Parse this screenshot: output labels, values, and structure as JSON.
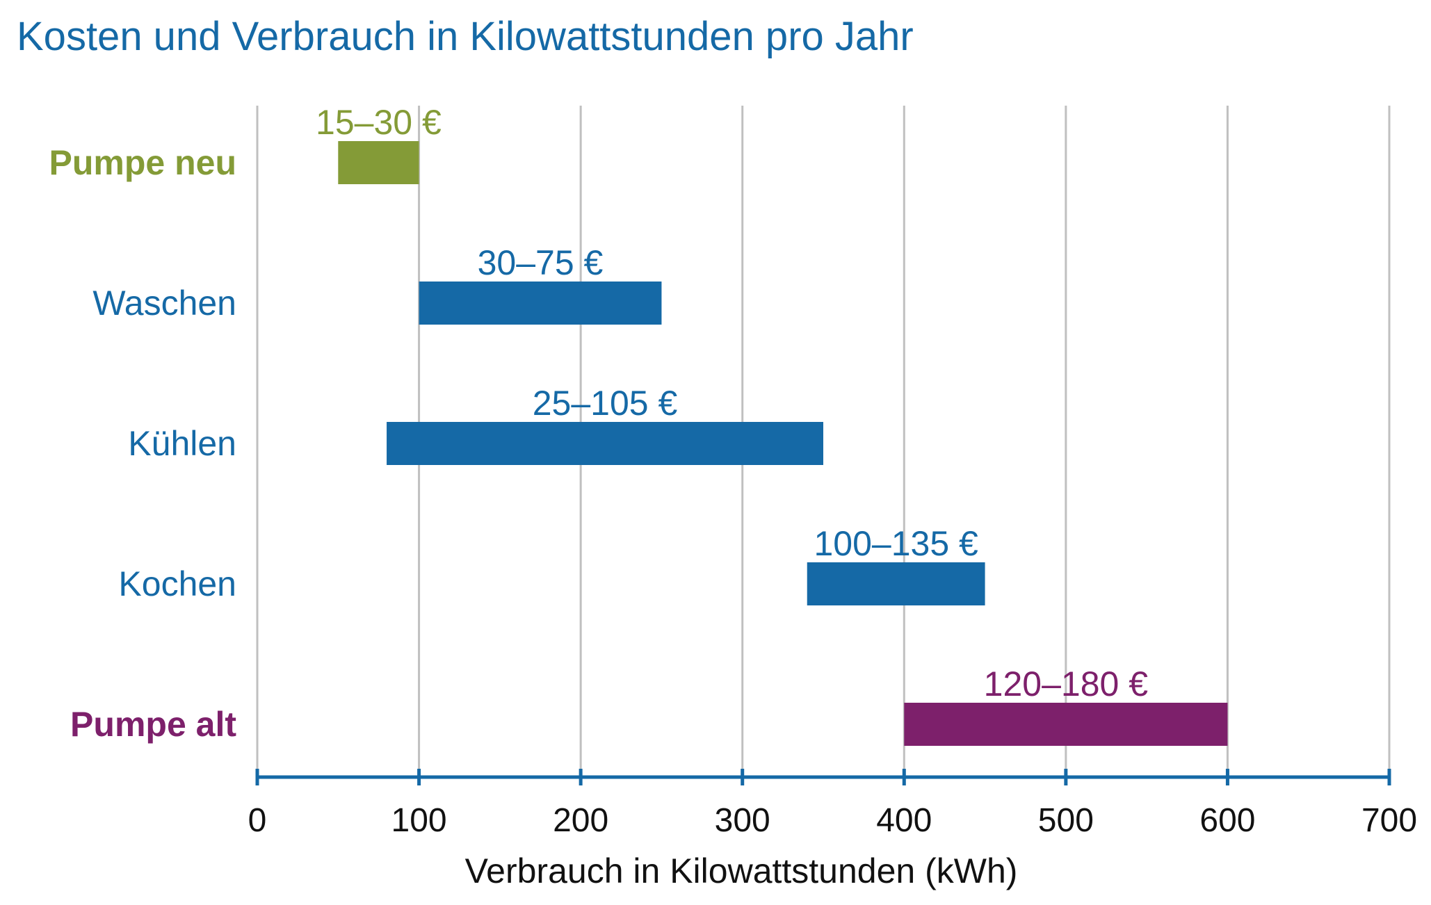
{
  "chart_data": {
    "type": "bar",
    "orientation": "horizontal-range",
    "title": "Kosten und Verbrauch in Kilowattstunden pro Jahr",
    "xlabel": "Verbrauch in Kilowattstunden (kWh)",
    "ylabel": "",
    "xlim": [
      0,
      700
    ],
    "xticks": [
      "0",
      "100",
      "200",
      "300",
      "400",
      "500",
      "600",
      "700"
    ],
    "grid": true,
    "categories": [
      "Pumpe neu",
      "Waschen",
      "Kühlen",
      "Kochen",
      "Pumpe alt"
    ],
    "ranges": [
      [
        50,
        100
      ],
      [
        100,
        250
      ],
      [
        80,
        350
      ],
      [
        340,
        450
      ],
      [
        400,
        600
      ]
    ],
    "labels": [
      "15–30 €",
      "30–75 €",
      "25–105 €",
      "100–135 €",
      "120–180 €"
    ],
    "colors": [
      "#849b37",
      "#1569a6",
      "#1569a6",
      "#1569a6",
      "#7d206b"
    ],
    "title_color": "#1569a6",
    "axis_color": "#1569a6",
    "grid_color": "#c0c0c0"
  }
}
